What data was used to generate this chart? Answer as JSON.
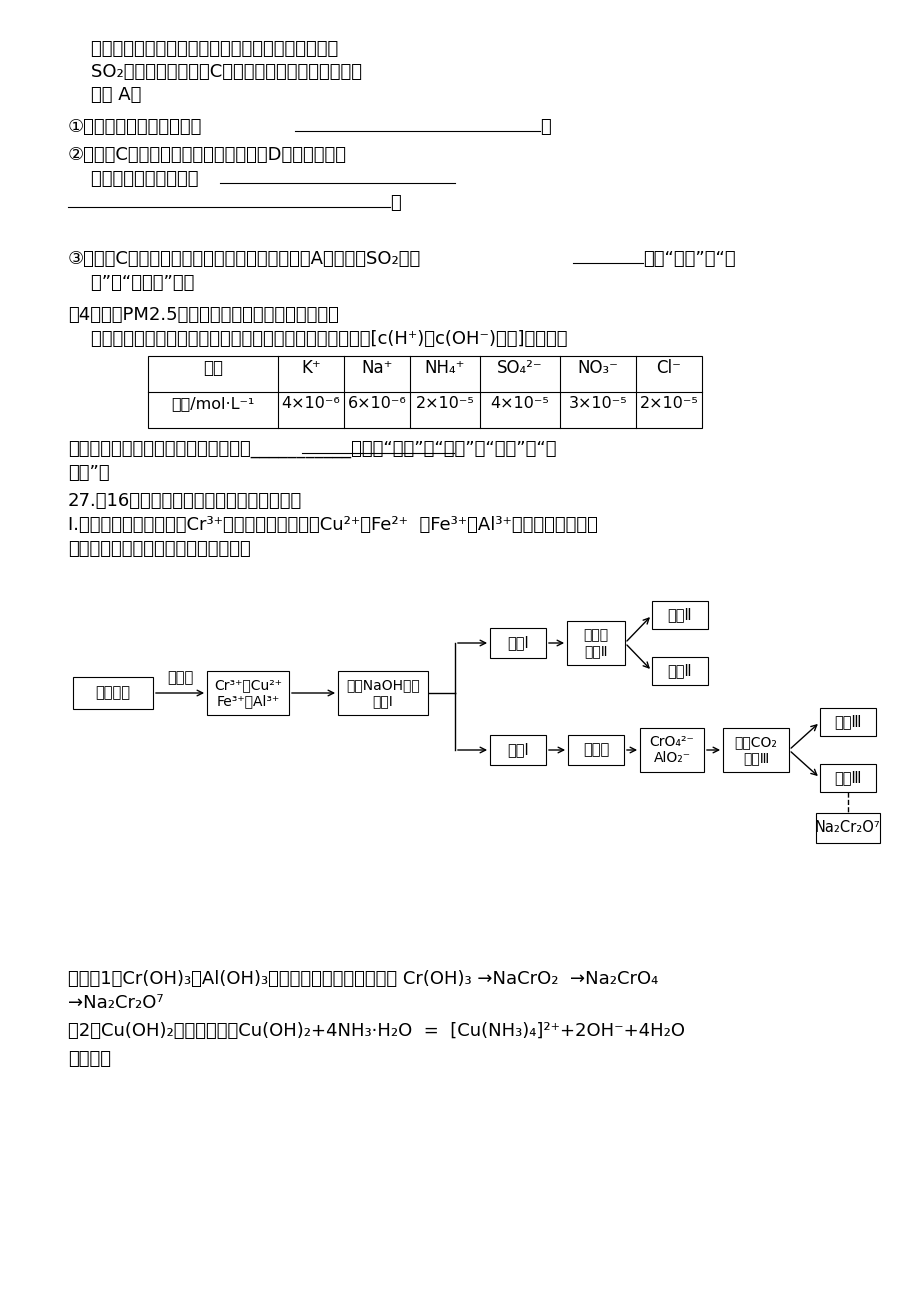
{
  "bg_color": "#ffffff",
  "line1": "    气体积。将尾气通入一定体积已知浓度的碘水中测定",
  "line2": "    SO₂的含量。当洗气瓶C中溶液蓝色消失时，立即关闭",
  "line3": "    活塞 A。",
  "q1_pre": "①写出该反应的离子方程式",
  "q1_end": "。",
  "q2_pre": "②洗气瓶C中导管末端连接一个多孔球泡D，可以提高实",
  "q2_l2": "    验的准确度，其理由是",
  "q2_end": "。",
  "q3_pre": "③洗气瓶C中溶液蓝色消失后，没有及时关闭活塞A，测得的SO₂含量",
  "q3_end": "（填“偏高”、“偏",
  "q3_l2": "    低”或“无影响”）。",
  "q4_l1": "（4）将某PM2.5样本用蔻馏水处理制成待测试液。",
  "q4_l2": "    若测得该试液所含水溶性无机离子的化学组分及其平均浓度[c(H⁺)、c(OH⁻)待测]如下表：",
  "th0": "离子",
  "th1": "K⁺",
  "th2": "Na⁺",
  "th3": "NH₄⁺",
  "th4": "SO₄²⁻",
  "th5": "NO₃⁻",
  "th6": "Cl⁻",
  "td0": "浓度/mol·L⁻¹",
  "td1": "4×10⁻⁶",
  "td2": "6×10⁻⁶",
  "td3": "2×10⁻⁵",
  "td4": "4×10⁻⁵",
  "td5": "3×10⁻⁵",
  "td6": "2×10⁻⁵",
  "q4_e1": "根据表中数据判断该待测试液酸碱性为___________。（填“酸性”、“中性”、“碱性”或“不",
  "q4_e2": "确定”）",
  "q27_t": "27.（16分）电镀含铬废水的处理方法较多。",
  "q27_p1": "Ⅰ.某工业废水中主要含有Cr³⁺，同时还含有少量的Cu²⁺、Fe²⁺  、Fe³⁺和Al³⁺等，且酸性较强。",
  "q27_p2": "为回收利用，通常采用如下流程处理：",
  "known1": "已知（1）Cr(OH)₃与Al(OH)₃性质相似，为两性氢氧化物 Cr(OH)₃ →NaCrO₂  →Na₂CrO₄",
  "known2": "→Na₂Cr₂O⁷",
  "known3": "（2）Cu(OH)₂能溶于氨水：Cu(OH)₂+4NH₃·H₂O  =  [Cu(NH₃)₄]²⁺+2OH⁻+4H₂O",
  "please": "请回答："
}
